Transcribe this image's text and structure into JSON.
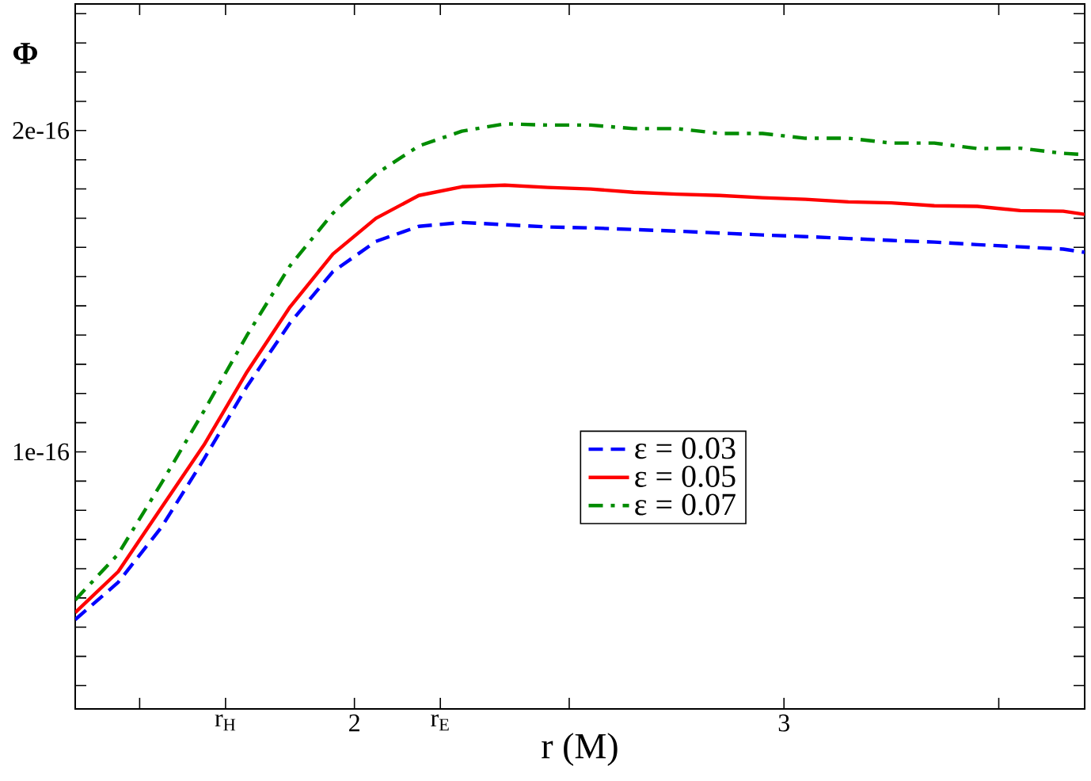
{
  "chart_data": {
    "type": "line",
    "xlabel": "r (M)",
    "ylabel": "Φ",
    "x": [
      1.35,
      1.45,
      1.55,
      1.65,
      1.75,
      1.85,
      1.95,
      2.05,
      2.15,
      2.25,
      2.35,
      2.45,
      2.55,
      2.65,
      2.75,
      2.85,
      2.95,
      3.05,
      3.15,
      3.25,
      3.35,
      3.45,
      3.55,
      3.65,
      3.7
    ],
    "series": [
      {
        "name": "ε = 0.03",
        "color": "#0000ff",
        "line_style": "dashed",
        "values": [
          4.78e-17,
          5.94e-17,
          7.64e-17,
          9.78e-17,
          1.204e-16,
          1.401e-16,
          1.561e-16,
          1.655e-16,
          1.702e-16,
          1.714e-16,
          1.707e-16,
          1.7e-16,
          1.697e-16,
          1.692e-16,
          1.687e-16,
          1.681e-16,
          1.675e-16,
          1.67e-16,
          1.664e-16,
          1.658e-16,
          1.653e-16,
          1.645e-16,
          1.638e-16,
          1.631e-16,
          1.621e-16
        ]
      },
      {
        "name": "ε = 0.05",
        "color": "#ff0000",
        "line_style": "solid",
        "values": [
          5e-17,
          6.27e-17,
          8.25e-17,
          1.022e-16,
          1.249e-16,
          1.451e-16,
          1.616e-16,
          1.727e-16,
          1.798e-16,
          1.825e-16,
          1.83e-16,
          1.823e-16,
          1.818e-16,
          1.808e-16,
          1.802e-16,
          1.798e-16,
          1.791e-16,
          1.786e-16,
          1.778e-16,
          1.775e-16,
          1.766e-16,
          1.764e-16,
          1.751e-16,
          1.749e-16,
          1.739e-16
        ]
      },
      {
        "name": "ε = 0.07",
        "color": "#008c00",
        "line_style": "dashdot",
        "values": [
          5.39e-17,
          6.82e-17,
          9.01e-17,
          1.128e-16,
          1.363e-16,
          1.579e-16,
          1.743e-16,
          1.865e-16,
          1.952e-16,
          1.998e-16,
          2.021e-16,
          2.017e-16,
          2.017e-16,
          2.006e-16,
          2.006e-16,
          1.991e-16,
          1.991e-16,
          1.976e-16,
          1.976e-16,
          1.961e-16,
          1.961e-16,
          1.944e-16,
          1.945e-16,
          1.929e-16,
          1.925e-16
        ]
      }
    ],
    "xlim": [
      1.35,
      3.7
    ],
    "xticks": [
      {
        "value": 1.5,
        "label": null
      },
      {
        "value": 1.7,
        "label": "r$_{H}$"
      },
      2,
      {
        "value": 2.2,
        "label": "r$_{E}$"
      },
      {
        "value": 2.5,
        "label": null
      },
      3,
      {
        "value": 3.5,
        "label": null
      }
    ],
    "ylim": [
      2e-17,
      2.394e-16
    ],
    "yticks": [
      {
        "value": 2.727e-17,
        "label": null
      },
      {
        "value": 3.636e-17,
        "label": null
      },
      {
        "value": 4.545e-17,
        "label": null
      },
      {
        "value": 5.455e-17,
        "label": null
      },
      {
        "value": 6.364e-17,
        "label": null
      },
      {
        "value": 7.273e-17,
        "label": null
      },
      {
        "value": 8.182e-17,
        "label": null
      },
      {
        "value": 9.091e-17,
        "label": null
      },
      {
        "value": 1e-16,
        "label": "1e-16"
      },
      {
        "value": 1.0909e-16,
        "label": null
      },
      {
        "value": 1.1818e-16,
        "label": null
      },
      {
        "value": 1.2727e-16,
        "label": null
      },
      {
        "value": 1.3636e-16,
        "label": null
      },
      {
        "value": 1.4545e-16,
        "label": null
      },
      {
        "value": 1.5455e-16,
        "label": null
      },
      {
        "value": 1.6364e-16,
        "label": null
      },
      {
        "value": 1.7273e-16,
        "label": null
      },
      {
        "value": 1.8182e-16,
        "label": null
      },
      {
        "value": 1.9091e-16,
        "label": null
      },
      {
        "value": 2e-16,
        "label": "2e-16"
      },
      {
        "value": 2.0909e-16,
        "label": null
      },
      {
        "value": 2.1818e-16,
        "label": null
      },
      {
        "value": 2.2727e-16,
        "label": null
      },
      {
        "value": 2.3636e-16,
        "label": null
      }
    ],
    "grid": false,
    "legend": "right"
  }
}
